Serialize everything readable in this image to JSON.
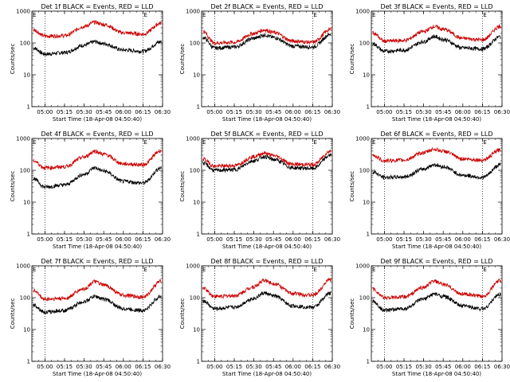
{
  "chart_data": [
    {
      "type": "line",
      "title": "Det 1f BLACK = Events, RED = LLD",
      "xlabel": "Start Time (18-Apr-08 04:50:40)",
      "ylabel": "Counts/sec",
      "yscale": "log",
      "ylim": [
        1,
        1000
      ],
      "x_ticks": [
        "05:00",
        "05:15",
        "05:30",
        "05:45",
        "06:00",
        "06:15",
        "06:30"
      ],
      "y_ticks": [
        "1",
        "10",
        "100",
        "1000"
      ],
      "corner_label": "E",
      "markers": [
        "05:00",
        "06:15"
      ],
      "series": [
        {
          "name": "Events",
          "color": "#000000",
          "x": [
            "04:51",
            "05:00",
            "05:15",
            "05:30",
            "05:38",
            "05:45",
            "06:00",
            "06:15",
            "06:29"
          ],
          "y": [
            70,
            45,
            50,
            85,
            110,
            95,
            60,
            55,
            110
          ]
        },
        {
          "name": "LLD",
          "color": "#cc0000",
          "x": [
            "04:51",
            "05:00",
            "05:15",
            "05:30",
            "05:38",
            "05:45",
            "06:00",
            "06:15",
            "06:29"
          ],
          "y": [
            260,
            165,
            170,
            330,
            450,
            380,
            210,
            190,
            420
          ]
        }
      ]
    },
    {
      "type": "line",
      "title": "Det 2f BLACK = Events, RED = LLD",
      "xlabel": "Start Time (18-Apr-08 04:50:40)",
      "ylabel": "Counts/sec",
      "yscale": "log",
      "ylim": [
        1,
        1000
      ],
      "x_ticks": [
        "05:00",
        "05:15",
        "05:30",
        "05:45",
        "06:00",
        "06:15",
        "06:30"
      ],
      "y_ticks": [
        "1",
        "10",
        "100",
        "1000"
      ],
      "corner_label": "E",
      "markers": [
        "05:00",
        "06:15"
      ],
      "series": [
        {
          "name": "Events",
          "color": "#000000",
          "x": [
            "04:51",
            "05:00",
            "05:15",
            "05:30",
            "05:38",
            "05:45",
            "06:00",
            "06:15",
            "06:29"
          ],
          "y": [
            150,
            70,
            75,
            140,
            180,
            150,
            80,
            75,
            190
          ]
        },
        {
          "name": "LLD",
          "color": "#cc0000",
          "x": [
            "04:51",
            "05:00",
            "05:15",
            "05:30",
            "05:38",
            "05:45",
            "06:00",
            "06:15",
            "06:29"
          ],
          "y": [
            230,
            100,
            105,
            200,
            260,
            215,
            115,
            105,
            270
          ]
        }
      ]
    },
    {
      "type": "line",
      "title": "Det 3f BLACK = Events, RED = LLD",
      "xlabel": "Start Time (18-Apr-08 04:50:40)",
      "ylabel": "Counts/sec",
      "yscale": "log",
      "ylim": [
        1,
        1000
      ],
      "x_ticks": [
        "05:00",
        "05:15",
        "05:30",
        "05:45",
        "06:00",
        "06:15",
        "06:30"
      ],
      "y_ticks": [
        "1",
        "10",
        "100",
        "1000"
      ],
      "corner_label": "E",
      "markers": [
        "05:00",
        "06:15"
      ],
      "series": [
        {
          "name": "Events",
          "color": "#000000",
          "x": [
            "04:51",
            "05:00",
            "05:15",
            "05:30",
            "05:38",
            "05:45",
            "06:00",
            "06:15",
            "06:29"
          ],
          "y": [
            95,
            55,
            60,
            110,
            160,
            130,
            70,
            65,
            160
          ]
        },
        {
          "name": "LLD",
          "color": "#cc0000",
          "x": [
            "04:51",
            "05:00",
            "05:15",
            "05:30",
            "05:38",
            "05:45",
            "06:00",
            "06:15",
            "06:29"
          ],
          "y": [
            210,
            115,
            120,
            230,
            330,
            270,
            140,
            125,
            340
          ]
        }
      ]
    },
    {
      "type": "line",
      "title": "Det 4f BLACK = Events, RED = LLD",
      "xlabel": "Start Time (18-Apr-08 04:50:40)",
      "ylabel": "Counts/sec",
      "yscale": "log",
      "ylim": [
        1,
        1000
      ],
      "x_ticks": [
        "05:00",
        "05:15",
        "05:30",
        "05:45",
        "06:00",
        "06:15",
        "06:30"
      ],
      "y_ticks": [
        "1",
        "10",
        "100",
        "1000"
      ],
      "corner_label": "E",
      "markers": [
        "05:00",
        "06:15"
      ],
      "series": [
        {
          "name": "Events",
          "color": "#000000",
          "x": [
            "04:51",
            "05:00",
            "05:15",
            "05:30",
            "05:38",
            "05:45",
            "06:00",
            "06:15",
            "06:29"
          ],
          "y": [
            55,
            30,
            35,
            75,
            120,
            95,
            45,
            40,
            120
          ]
        },
        {
          "name": "LLD",
          "color": "#cc0000",
          "x": [
            "04:51",
            "05:00",
            "05:15",
            "05:30",
            "05:38",
            "05:45",
            "06:00",
            "06:15",
            "06:29"
          ],
          "y": [
            200,
            120,
            130,
            260,
            400,
            320,
            160,
            150,
            420
          ]
        }
      ]
    },
    {
      "type": "line",
      "title": "Det 5f BLACK = Events, RED = LLD",
      "xlabel": "Start Time (18-Apr-08 04:50:40)",
      "ylabel": "Counts/sec",
      "yscale": "log",
      "ylim": [
        1,
        1000
      ],
      "x_ticks": [
        "05:00",
        "05:15",
        "05:30",
        "05:45",
        "06:00",
        "06:15",
        "06:30"
      ],
      "y_ticks": [
        "1",
        "10",
        "100",
        "1000"
      ],
      "corner_label": "E",
      "markers": [
        "05:00",
        "06:15"
      ],
      "series": [
        {
          "name": "Events",
          "color": "#000000",
          "x": [
            "04:51",
            "05:00",
            "05:15",
            "05:30",
            "05:38",
            "05:45",
            "06:00",
            "06:15",
            "06:29"
          ],
          "y": [
            170,
            100,
            105,
            200,
            270,
            220,
            120,
            115,
            300
          ]
        },
        {
          "name": "LLD",
          "color": "#cc0000",
          "x": [
            "04:51",
            "05:00",
            "05:15",
            "05:30",
            "05:38",
            "05:45",
            "06:00",
            "06:15",
            "06:29"
          ],
          "y": [
            230,
            135,
            140,
            270,
            350,
            290,
            155,
            150,
            400
          ]
        }
      ]
    },
    {
      "type": "line",
      "title": "Det 6f BLACK = Events, RED = LLD",
      "xlabel": "Start Time (18-Apr-08 04:50:40)",
      "ylabel": "Counts/sec",
      "yscale": "log",
      "ylim": [
        1,
        1000
      ],
      "x_ticks": [
        "05:00",
        "05:15",
        "05:30",
        "05:45",
        "06:00",
        "06:15",
        "06:30"
      ],
      "y_ticks": [
        "1",
        "10",
        "100",
        "1000"
      ],
      "corner_label": "E",
      "markers": [
        "05:00",
        "06:15"
      ],
      "series": [
        {
          "name": "Events",
          "color": "#000000",
          "x": [
            "04:51",
            "05:00",
            "05:15",
            "05:30",
            "05:38",
            "05:45",
            "06:00",
            "06:15",
            "06:29"
          ],
          "y": [
            90,
            60,
            62,
            110,
            150,
            130,
            70,
            60,
            150
          ]
        },
        {
          "name": "LLD",
          "color": "#cc0000",
          "x": [
            "04:51",
            "05:00",
            "05:15",
            "05:30",
            "05:38",
            "05:45",
            "06:00",
            "06:15",
            "06:29"
          ],
          "y": [
            300,
            200,
            210,
            360,
            460,
            400,
            230,
            210,
            440
          ]
        }
      ]
    },
    {
      "type": "line",
      "title": "Det 7f BLACK = Events, RED = LLD",
      "xlabel": "Start Time (18-Apr-08 04:50:40)",
      "ylabel": "Counts/sec",
      "yscale": "log",
      "ylim": [
        1,
        1000
      ],
      "x_ticks": [
        "05:00",
        "05:15",
        "05:30",
        "05:45",
        "06:00",
        "06:15",
        "06:30"
      ],
      "y_ticks": [
        "1",
        "10",
        "100",
        "1000"
      ],
      "corner_label": "E",
      "markers": [
        "05:00",
        "06:15"
      ],
      "series": [
        {
          "name": "Events",
          "color": "#000000",
          "x": [
            "04:51",
            "05:00",
            "05:15",
            "05:30",
            "05:38",
            "05:45",
            "06:00",
            "06:15",
            "06:29"
          ],
          "y": [
            60,
            35,
            40,
            75,
            110,
            90,
            45,
            40,
            110
          ]
        },
        {
          "name": "LLD",
          "color": "#cc0000",
          "x": [
            "04:51",
            "05:00",
            "05:15",
            "05:30",
            "05:38",
            "05:45",
            "06:00",
            "06:15",
            "06:29"
          ],
          "y": [
            170,
            90,
            95,
            190,
            320,
            250,
            120,
            105,
            330
          ]
        }
      ]
    },
    {
      "type": "line",
      "title": "Det 8f BLACK = Events, RED = LLD",
      "xlabel": "Start Time (18-Apr-08 04:50:40)",
      "ylabel": "Counts/sec",
      "yscale": "log",
      "ylim": [
        1,
        1000
      ],
      "x_ticks": [
        "05:00",
        "05:15",
        "05:30",
        "05:45",
        "06:00",
        "06:15",
        "06:30"
      ],
      "y_ticks": [
        "1",
        "10",
        "100",
        "1000"
      ],
      "corner_label": "E",
      "markers": [
        "05:00",
        "06:15"
      ],
      "series": [
        {
          "name": "Events",
          "color": "#000000",
          "x": [
            "04:51",
            "05:00",
            "05:15",
            "05:30",
            "05:38",
            "05:45",
            "06:00",
            "06:15",
            "06:29"
          ],
          "y": [
            80,
            45,
            50,
            95,
            140,
            115,
            55,
            50,
            140
          ]
        },
        {
          "name": "LLD",
          "color": "#cc0000",
          "x": [
            "04:51",
            "05:00",
            "05:15",
            "05:30",
            "05:38",
            "05:45",
            "06:00",
            "06:15",
            "06:29"
          ],
          "y": [
            200,
            110,
            115,
            220,
            350,
            280,
            135,
            120,
            380
          ]
        }
      ]
    },
    {
      "type": "line",
      "title": "Det 9f BLACK = Events, RED = LLD",
      "xlabel": "Start Time (18-Apr-08 04:50:40)",
      "ylabel": "Counts/sec",
      "yscale": "log",
      "ylim": [
        1,
        1000
      ],
      "x_ticks": [
        "05:00",
        "05:15",
        "05:30",
        "05:45",
        "06:00",
        "06:15",
        "06:30"
      ],
      "y_ticks": [
        "1",
        "10",
        "100",
        "1000"
      ],
      "corner_label": "E",
      "markers": [
        "05:00",
        "06:15"
      ],
      "series": [
        {
          "name": "Events",
          "color": "#000000",
          "x": [
            "04:51",
            "05:00",
            "05:15",
            "05:30",
            "05:38",
            "05:45",
            "06:00",
            "06:15",
            "06:29"
          ],
          "y": [
            75,
            40,
            45,
            90,
            130,
            110,
            55,
            45,
            130
          ]
        },
        {
          "name": "LLD",
          "color": "#cc0000",
          "x": [
            "04:51",
            "05:00",
            "05:15",
            "05:30",
            "05:38",
            "05:45",
            "06:00",
            "06:15",
            "06:29"
          ],
          "y": [
            190,
            100,
            105,
            210,
            330,
            260,
            130,
            110,
            350
          ]
        }
      ]
    }
  ]
}
